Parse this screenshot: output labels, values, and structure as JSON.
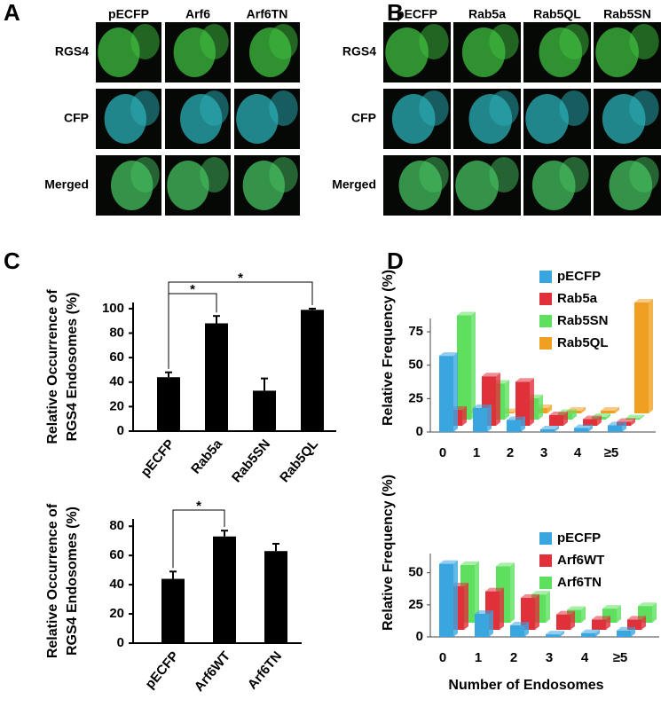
{
  "figure_a": {
    "label": "A",
    "columns": [
      "pECFP",
      "Arf6",
      "Arf6TN"
    ],
    "rows": [
      "RGS4",
      "CFP",
      "Merged"
    ]
  },
  "figure_b": {
    "label": "B",
    "columns": [
      "pECFP",
      "Rab5a",
      "Rab5QL",
      "Rab5SN"
    ],
    "rows": [
      "RGS4",
      "CFP",
      "Merged"
    ]
  },
  "panel_c": {
    "label": "C"
  },
  "panel_d": {
    "label": "D"
  },
  "chart_data": [
    {
      "type": "bar",
      "ylabel": [
        "Relative Occurrence of",
        "RGS4 Endosomes  (%)"
      ],
      "categories": [
        "pECFP",
        "Rab5a",
        "Rab5SN",
        "Rab5QL"
      ],
      "values": [
        44,
        88,
        33,
        99
      ],
      "errors": [
        4,
        6,
        10,
        1
      ],
      "color": "#000000",
      "ylim": [
        0,
        105
      ],
      "yticks": [
        0,
        20,
        40,
        60,
        80,
        100
      ],
      "brackets": [
        {
          "label": "*",
          "between": [
            "pECFP",
            "Rab5a"
          ]
        },
        {
          "label": "*",
          "between": [
            "pECFP",
            "Rab5QL"
          ]
        }
      ]
    },
    {
      "type": "bar",
      "ylabel": [
        "Relative Occurrence of",
        "RGS4 Endosomes  (%)"
      ],
      "categories": [
        "pECFP",
        "Arf6WT",
        "Arf6TN"
      ],
      "values": [
        44,
        73,
        63
      ],
      "errors": [
        5,
        4,
        5
      ],
      "color": "#000000",
      "ylim": [
        0,
        85
      ],
      "yticks": [
        0,
        20,
        40,
        60,
        80
      ],
      "brackets": [
        {
          "label": "*",
          "between": [
            "pECFP",
            "Arf6WT"
          ]
        }
      ]
    },
    {
      "type": "bar3d",
      "ylabel": "Relative Frequency (%)",
      "categories": [
        "0",
        "1",
        "2",
        "3",
        "4",
        "≥5"
      ],
      "ylim": [
        0,
        85
      ],
      "yticks": [
        0,
        25,
        50,
        75
      ],
      "series": [
        {
          "name": "pECFP",
          "color": "#3aa6e0",
          "values": [
            57,
            18,
            9,
            2,
            3,
            5
          ]
        },
        {
          "name": "Rab5a",
          "color": "#e0303a",
          "values": [
            12,
            37,
            33,
            8,
            5,
            3
          ]
        },
        {
          "name": "Rab5SN",
          "color": "#5ee05e",
          "values": [
            78,
            27,
            16,
            5,
            2,
            1
          ]
        },
        {
          "name": "Rab5QL",
          "color": "#f0a020",
          "values": [
            1,
            1,
            4,
            2,
            2,
            83
          ]
        }
      ]
    },
    {
      "type": "bar3d",
      "ylabel": "Relative Frequency (%)",
      "xlabel": "Number of Endosomes",
      "categories": [
        "0",
        "1",
        "2",
        "3",
        "4",
        "≥5"
      ],
      "ylim": [
        0,
        65
      ],
      "yticks": [
        0,
        25,
        50
      ],
      "series": [
        {
          "name": "pECFP",
          "color": "#3aa6e0",
          "values": [
            57,
            18,
            9,
            2,
            3,
            5
          ]
        },
        {
          "name": "Arf6WT",
          "color": "#e0303a",
          "values": [
            34,
            30,
            25,
            12,
            8,
            8
          ]
        },
        {
          "name": "Arf6TN",
          "color": "#5ee05e",
          "values": [
            45,
            44,
            22,
            10,
            11,
            13
          ]
        }
      ]
    }
  ]
}
